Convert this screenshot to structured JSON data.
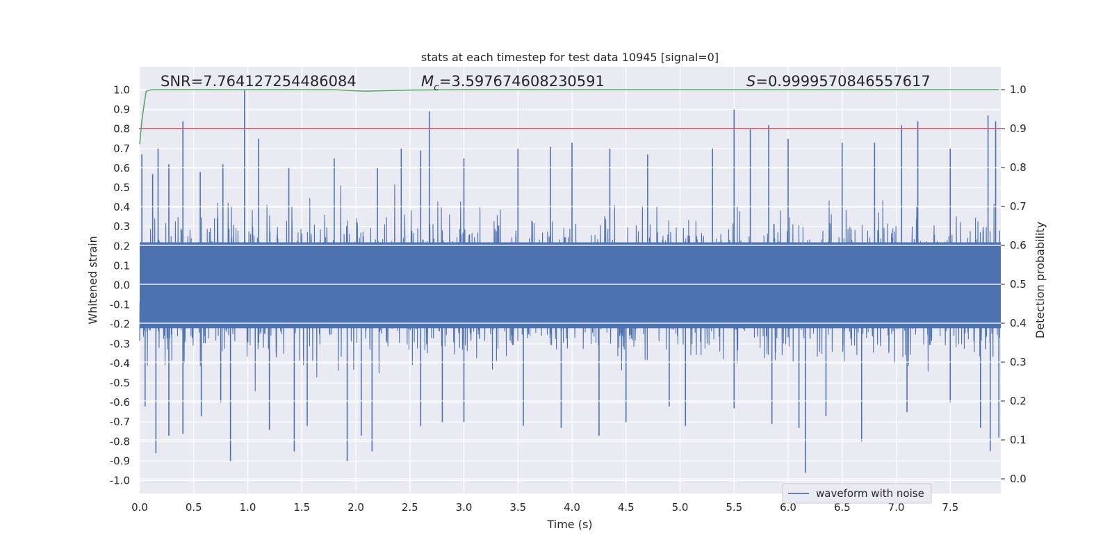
{
  "chart_data": {
    "type": "line",
    "title": "stats at each timestep for test data 10945 [signal=0]",
    "xlabel": "Time (s)",
    "ylabel_left": "Whitened strain",
    "ylabel_right": "Detection probability",
    "xlim": [
      0.0,
      8.0
    ],
    "ylim_left": [
      -1.1,
      1.1
    ],
    "ylim_right": [
      -0.05,
      1.05
    ],
    "grid": true,
    "x_ticks": [
      "0.0",
      "0.5",
      "1.0",
      "1.5",
      "2.0",
      "2.5",
      "3.0",
      "3.5",
      "4.0",
      "4.5",
      "5.0",
      "5.5",
      "6.0",
      "6.5",
      "7.0",
      "7.5"
    ],
    "y_ticks_left": [
      "1.0",
      "0.9",
      "0.8",
      "0.7",
      "0.6",
      "0.5",
      "0.4",
      "0.3",
      "0.2",
      "0.1",
      "0.0",
      "-0.1",
      "-0.2",
      "-0.3",
      "-0.4",
      "-0.5",
      "-0.6",
      "-0.7",
      "-0.8",
      "-0.9",
      "-1.0"
    ],
    "y_ticks_right": [
      "1.0",
      "0.9",
      "0.8",
      "0.7",
      "0.6",
      "0.5",
      "0.4",
      "0.3",
      "0.2",
      "0.1",
      "0.0"
    ],
    "threshold": {
      "value": 0.9,
      "axis": "right",
      "color": "#c44e52"
    },
    "annotations": {
      "snr": {
        "prefix": "SNR=",
        "value": "7.764127254486084"
      },
      "mc": {
        "symbol": "M",
        "subscript": "c",
        "value": "=3.597674608230591"
      },
      "s": {
        "symbol": "S",
        "value": "=0.9999570846557617"
      }
    },
    "series": [
      {
        "name": "waveform with noise",
        "axis": "left",
        "color": "#4c72b0",
        "sampling": "dense noise, approx. ±0.3 band",
        "peaks": [
          {
            "x": 0.02,
            "y": 0.67
          },
          {
            "x": 0.12,
            "y": 0.57
          },
          {
            "x": 0.17,
            "y": 0.7
          },
          {
            "x": 0.27,
            "y": 0.62
          },
          {
            "x": 0.4,
            "y": 0.84
          },
          {
            "x": 0.56,
            "y": 0.58
          },
          {
            "x": 0.77,
            "y": 0.62
          },
          {
            "x": 0.97,
            "y": 1.0
          },
          {
            "x": 1.1,
            "y": 0.75
          },
          {
            "x": 1.38,
            "y": 0.6
          },
          {
            "x": 1.8,
            "y": 0.65
          },
          {
            "x": 2.2,
            "y": 0.6
          },
          {
            "x": 2.42,
            "y": 0.7
          },
          {
            "x": 2.6,
            "y": 0.69
          },
          {
            "x": 2.68,
            "y": 0.89
          },
          {
            "x": 3.0,
            "y": 0.65
          },
          {
            "x": 3.5,
            "y": 0.7
          },
          {
            "x": 3.8,
            "y": 0.71
          },
          {
            "x": 4.0,
            "y": 0.73
          },
          {
            "x": 4.35,
            "y": 0.7
          },
          {
            "x": 4.7,
            "y": 0.67
          },
          {
            "x": 5.3,
            "y": 0.7
          },
          {
            "x": 5.5,
            "y": 0.9
          },
          {
            "x": 5.65,
            "y": 0.8
          },
          {
            "x": 5.82,
            "y": 0.82
          },
          {
            "x": 6.0,
            "y": 0.75
          },
          {
            "x": 6.5,
            "y": 0.73
          },
          {
            "x": 6.8,
            "y": 0.73
          },
          {
            "x": 7.05,
            "y": 0.82
          },
          {
            "x": 7.2,
            "y": 0.84
          },
          {
            "x": 7.5,
            "y": 0.7
          },
          {
            "x": 7.85,
            "y": 0.87
          },
          {
            "x": 7.92,
            "y": 0.84
          }
        ],
        "troughs": [
          {
            "x": 0.05,
            "y": -0.62
          },
          {
            "x": 0.15,
            "y": -0.86
          },
          {
            "x": 0.27,
            "y": -0.77
          },
          {
            "x": 0.4,
            "y": -0.76
          },
          {
            "x": 0.57,
            "y": -0.67
          },
          {
            "x": 0.75,
            "y": -0.6
          },
          {
            "x": 0.84,
            "y": -0.9
          },
          {
            "x": 1.2,
            "y": -0.74
          },
          {
            "x": 1.43,
            "y": -0.85
          },
          {
            "x": 1.55,
            "y": -0.72
          },
          {
            "x": 1.92,
            "y": -0.9
          },
          {
            "x": 2.05,
            "y": -0.77
          },
          {
            "x": 2.15,
            "y": -0.85
          },
          {
            "x": 2.6,
            "y": -0.72
          },
          {
            "x": 2.8,
            "y": -0.7
          },
          {
            "x": 3.0,
            "y": -0.7
          },
          {
            "x": 3.55,
            "y": -0.72
          },
          {
            "x": 3.9,
            "y": -0.73
          },
          {
            "x": 4.25,
            "y": -0.77
          },
          {
            "x": 4.5,
            "y": -0.7
          },
          {
            "x": 4.9,
            "y": -0.62
          },
          {
            "x": 5.05,
            "y": -0.72
          },
          {
            "x": 5.5,
            "y": -0.63
          },
          {
            "x": 5.85,
            "y": -0.71
          },
          {
            "x": 6.1,
            "y": -0.73
          },
          {
            "x": 6.16,
            "y": -0.96
          },
          {
            "x": 6.35,
            "y": -0.67
          },
          {
            "x": 6.68,
            "y": -0.8
          },
          {
            "x": 7.1,
            "y": -0.65
          },
          {
            "x": 7.5,
            "y": -0.6
          },
          {
            "x": 7.78,
            "y": -0.73
          },
          {
            "x": 7.87,
            "y": -0.85
          },
          {
            "x": 7.95,
            "y": -0.78
          }
        ]
      },
      {
        "name": "detection probability",
        "axis": "right",
        "color": "#55a868",
        "x": [
          0.0,
          0.02,
          0.04,
          0.06,
          0.08,
          0.12,
          0.3,
          0.8,
          1.0,
          1.5,
          1.8,
          2.0,
          2.1,
          2.2,
          2.5,
          3.0,
          4.0,
          5.0,
          6.0,
          7.0,
          7.95
        ],
        "y": [
          0.86,
          0.92,
          0.96,
          0.995,
          0.998,
          1.0,
          1.0,
          1.0,
          1.0,
          1.0,
          1.0,
          0.997,
          0.996,
          0.997,
          0.999,
          1.0,
          1.0,
          1.0,
          1.0,
          1.0,
          1.0
        ]
      }
    ],
    "legend": {
      "location": "lower-right",
      "entries": [
        "waveform with noise"
      ]
    }
  }
}
